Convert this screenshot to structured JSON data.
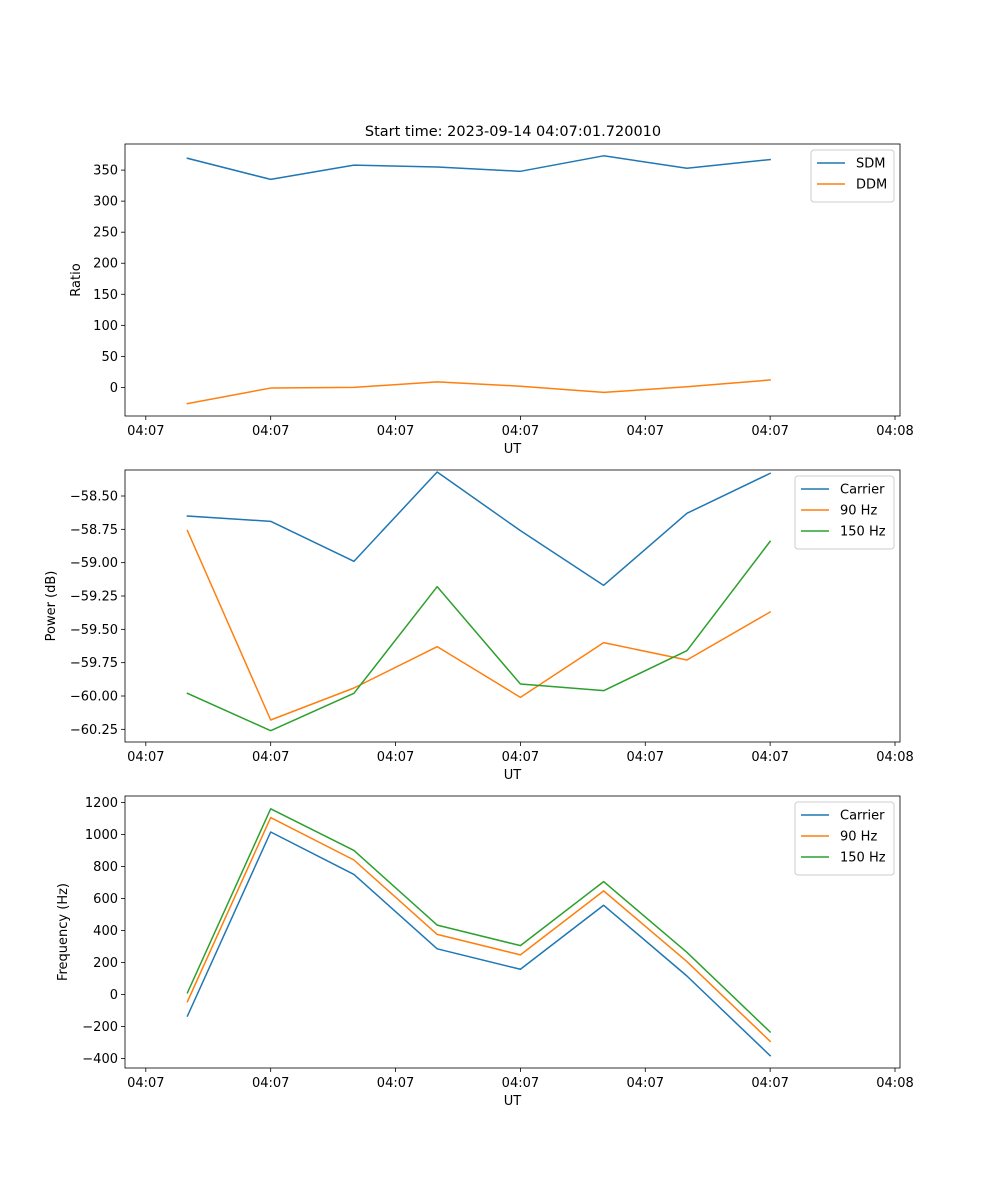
{
  "figure": {
    "title": "Start time: 2023-09-14 04:07:01.720010"
  },
  "chart_data": [
    {
      "type": "line",
      "title": "Start time: 2023-09-14 04:07:01.720010",
      "xlabel": "UT",
      "ylabel": "Ratio",
      "xlim": [
        -0.75,
        8.56
      ],
      "ylim": [
        -46,
        392
      ],
      "xticks": [
        {
          "value": -0.5,
          "label": "04:07"
        },
        {
          "value": 1,
          "label": "04:07"
        },
        {
          "value": 2.5,
          "label": "04:07"
        },
        {
          "value": 4,
          "label": "04:07"
        },
        {
          "value": 5.5,
          "label": "04:07"
        },
        {
          "value": 7,
          "label": "04:07"
        },
        {
          "value": 8.5,
          "label": "04:08"
        }
      ],
      "yticks": [
        {
          "value": 0,
          "label": "0"
        },
        {
          "value": 50,
          "label": "50"
        },
        {
          "value": 100,
          "label": "100"
        },
        {
          "value": 150,
          "label": "150"
        },
        {
          "value": 200,
          "label": "200"
        },
        {
          "value": 250,
          "label": "250"
        },
        {
          "value": 300,
          "label": "300"
        },
        {
          "value": 350,
          "label": "350"
        }
      ],
      "x": [
        0,
        1,
        2,
        3,
        4,
        5,
        6,
        7
      ],
      "series": [
        {
          "name": "SDM",
          "color": "#1f77b4",
          "values": [
            369,
            335,
            358,
            355,
            348,
            373,
            353,
            367
          ]
        },
        {
          "name": "DDM",
          "color": "#ff7f0e",
          "values": [
            -26,
            -1,
            0,
            9,
            2,
            -8,
            1,
            12
          ]
        }
      ],
      "legend": "top-right"
    },
    {
      "type": "line",
      "title": "",
      "xlabel": "UT",
      "ylabel": "Power (dB)",
      "xlim": [
        -0.75,
        8.56
      ],
      "ylim": [
        -60.345,
        -58.305
      ],
      "xticks": [
        {
          "value": -0.5,
          "label": "04:07"
        },
        {
          "value": 1,
          "label": "04:07"
        },
        {
          "value": 2.5,
          "label": "04:07"
        },
        {
          "value": 4,
          "label": "04:07"
        },
        {
          "value": 5.5,
          "label": "04:07"
        },
        {
          "value": 7,
          "label": "04:07"
        },
        {
          "value": 8.5,
          "label": "04:08"
        }
      ],
      "yticks": [
        {
          "value": -58.5,
          "label": "−58.50"
        },
        {
          "value": -58.75,
          "label": "−58.75"
        },
        {
          "value": -59.0,
          "label": "−59.00"
        },
        {
          "value": -59.25,
          "label": "−59.25"
        },
        {
          "value": -59.5,
          "label": "−59.50"
        },
        {
          "value": -59.75,
          "label": "−59.75"
        },
        {
          "value": -60.0,
          "label": "−60.00"
        },
        {
          "value": -60.25,
          "label": "−60.25"
        }
      ],
      "x": [
        0,
        1,
        2,
        3,
        4,
        5,
        6,
        7
      ],
      "series": [
        {
          "name": "Carrier",
          "color": "#1f77b4",
          "values": [
            -58.65,
            -58.69,
            -58.99,
            -58.32,
            -58.76,
            -59.17,
            -58.63,
            -58.33
          ]
        },
        {
          "name": "90 Hz",
          "color": "#ff7f0e",
          "values": [
            -58.76,
            -60.18,
            -59.94,
            -59.63,
            -60.01,
            -59.6,
            -59.73,
            -59.37
          ]
        },
        {
          "name": "150 Hz",
          "color": "#2ca02c",
          "values": [
            -59.98,
            -60.26,
            -59.98,
            -59.18,
            -59.91,
            -59.96,
            -59.66,
            -58.84
          ]
        }
      ],
      "legend": "top-right"
    },
    {
      "type": "line",
      "title": "",
      "xlabel": "UT",
      "ylabel": "Frequency (Hz)",
      "xlim": [
        -0.75,
        8.56
      ],
      "ylim": [
        -460,
        1240
      ],
      "xticks": [
        {
          "value": -0.5,
          "label": "04:07"
        },
        {
          "value": 1,
          "label": "04:07"
        },
        {
          "value": 2.5,
          "label": "04:07"
        },
        {
          "value": 4,
          "label": "04:07"
        },
        {
          "value": 5.5,
          "label": "04:07"
        },
        {
          "value": 7,
          "label": "04:07"
        },
        {
          "value": 8.5,
          "label": "04:08"
        }
      ],
      "yticks": [
        {
          "value": -400,
          "label": "−400"
        },
        {
          "value": -200,
          "label": "−200"
        },
        {
          "value": 0,
          "label": "0"
        },
        {
          "value": 200,
          "label": "200"
        },
        {
          "value": 400,
          "label": "400"
        },
        {
          "value": 600,
          "label": "600"
        },
        {
          "value": 800,
          "label": "800"
        },
        {
          "value": 1000,
          "label": "1000"
        },
        {
          "value": 1200,
          "label": "1200"
        }
      ],
      "x": [
        0,
        1,
        2,
        3,
        4,
        5,
        6,
        7
      ],
      "series": [
        {
          "name": "Carrier",
          "color": "#1f77b4",
          "values": [
            -135,
            1015,
            750,
            285,
            157,
            557,
            115,
            -383
          ]
        },
        {
          "name": "90 Hz",
          "color": "#ff7f0e",
          "values": [
            -45,
            1105,
            840,
            375,
            247,
            647,
            205,
            -293
          ]
        },
        {
          "name": "150 Hz",
          "color": "#2ca02c",
          "values": [
            10,
            1160,
            900,
            433,
            305,
            705,
            263,
            -235
          ]
        }
      ],
      "legend": "top-right"
    }
  ]
}
